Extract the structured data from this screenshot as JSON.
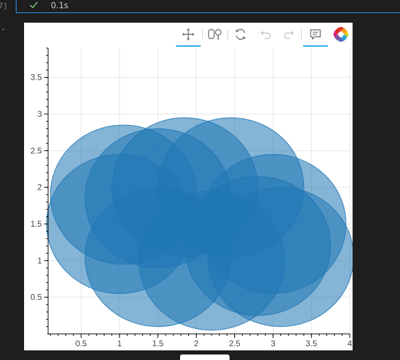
{
  "cell": {
    "execution_count": "7]",
    "status_icon": "check-icon",
    "duration": "0.1s",
    "output_marker": "·"
  },
  "toolbar": {
    "tools": [
      {
        "name": "pan-tool",
        "icon": "pan-icon",
        "active": true
      },
      {
        "name": "box-zoom-tool",
        "icon": "box-zoom-icon",
        "active": false
      },
      {
        "name": "reset-tool",
        "icon": "reset-icon",
        "active": false
      },
      {
        "name": "undo-tool",
        "icon": "undo-icon",
        "active": false
      },
      {
        "name": "redo-tool",
        "icon": "redo-icon",
        "active": false
      },
      {
        "name": "hover-tool",
        "icon": "hover-icon",
        "active": true
      },
      {
        "name": "bokeh-logo",
        "icon": "bokeh-logo-icon",
        "active": false
      }
    ]
  },
  "chart_data": {
    "type": "scatter",
    "marker": "circle",
    "color": "#1f77b4",
    "fill_alpha": 0.55,
    "radius": 0.95,
    "x": [
      1.0,
      1.5,
      1.85,
      2.45,
      3.0,
      3.1,
      1.5,
      2.2,
      2.8,
      1.05
    ],
    "y": [
      1.5,
      1.85,
      2.0,
      2.0,
      1.5,
      1.05,
      1.05,
      1.0,
      1.2,
      1.9
    ],
    "xlim": [
      0.07,
      4.0
    ],
    "ylim": [
      0.0,
      3.9
    ],
    "xticks": [
      "0.5",
      "1",
      "1.5",
      "2",
      "2.5",
      "3",
      "3.5",
      "4"
    ],
    "yticks": [
      "0.5",
      "1",
      "1.5",
      "2",
      "2.5",
      "3",
      "3.5"
    ],
    "xtick_values": [
      0.5,
      1.0,
      1.5,
      2.0,
      2.5,
      3.0,
      3.5,
      4.0
    ],
    "ytick_values": [
      0.5,
      1.0,
      1.5,
      2.0,
      2.5,
      3.0,
      3.5
    ],
    "grid": true,
    "title": "",
    "xlabel": "",
    "ylabel": ""
  }
}
